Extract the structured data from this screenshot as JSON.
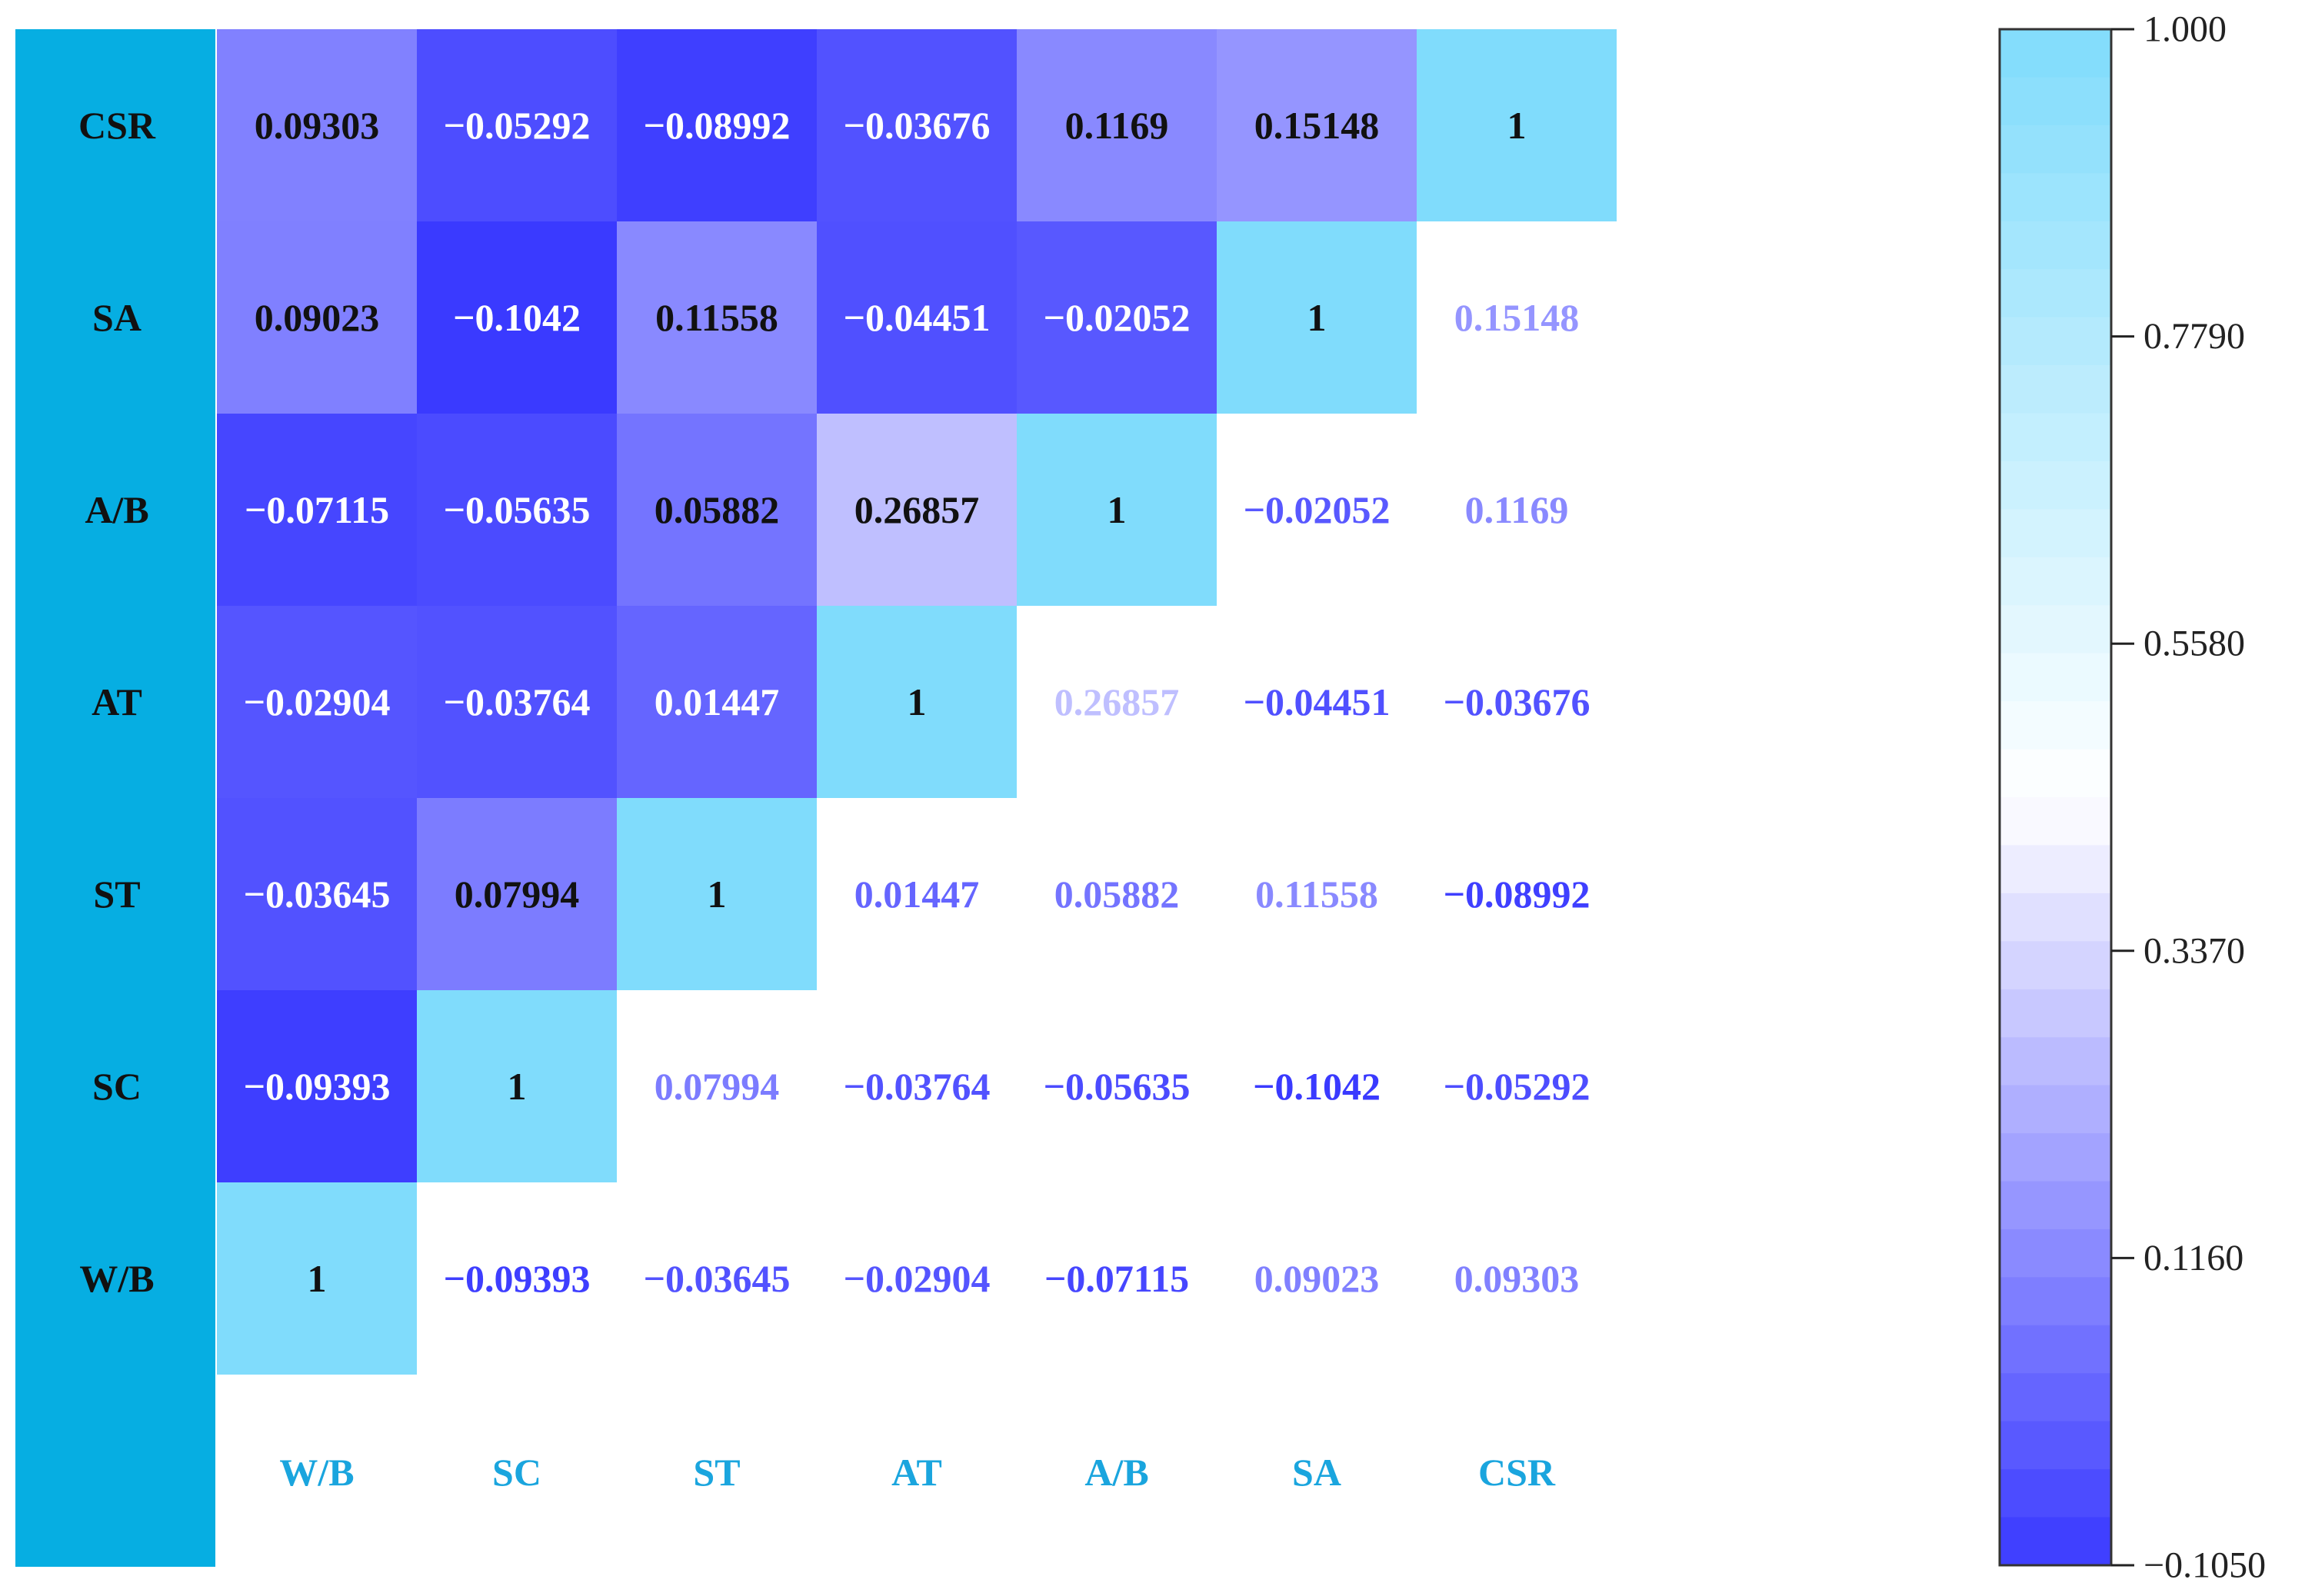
{
  "chart_data": {
    "type": "heatmap",
    "title": "",
    "xlabel": "",
    "ylabel": "",
    "variables": [
      "W/B",
      "SC",
      "ST",
      "AT",
      "A/B",
      "SA",
      "CSR"
    ],
    "row_order": [
      "CSR",
      "SA",
      "A/B",
      "AT",
      "ST",
      "SC",
      "W/B"
    ],
    "matrix": [
      [
        "1",
        "−0.09393",
        "−0.03645",
        "−0.02904",
        "−0.07115",
        "0.09023",
        "0.09303"
      ],
      [
        "−0.09393",
        "1",
        "0.07994",
        "−0.03764",
        "−0.05635",
        "−0.1042",
        "−0.05292"
      ],
      [
        "−0.03645",
        "0.07994",
        "1",
        "0.01447",
        "0.05882",
        "0.11558",
        "−0.08992"
      ],
      [
        "−0.02904",
        "−0.03764",
        "0.01447",
        "1",
        "0.26857",
        "−0.04451",
        "−0.03676"
      ],
      [
        "−0.07115",
        "−0.05635",
        "0.05882",
        "0.26857",
        "1",
        "−0.02052",
        "0.1169"
      ],
      [
        "0.09023",
        "−0.1042",
        "0.11558",
        "−0.04451",
        "−0.02052",
        "1",
        "0.15148"
      ],
      [
        "0.09303",
        "−0.05292",
        "−0.08992",
        "−0.03676",
        "0.1169",
        "0.15148",
        "1"
      ]
    ],
    "colorbar": {
      "min": -0.105,
      "max": 1.0,
      "ticks": [
        "1.000",
        "0.7790",
        "0.5580",
        "0.3370",
        "0.1160",
        "−0.1050"
      ],
      "low_color": "#3a3aff",
      "mid_color": "#ffffff",
      "high_color": "#80dcfc"
    },
    "label_band_color": "#06aee2",
    "axis_label_color": "#1aa5de",
    "legend_position": "right"
  }
}
